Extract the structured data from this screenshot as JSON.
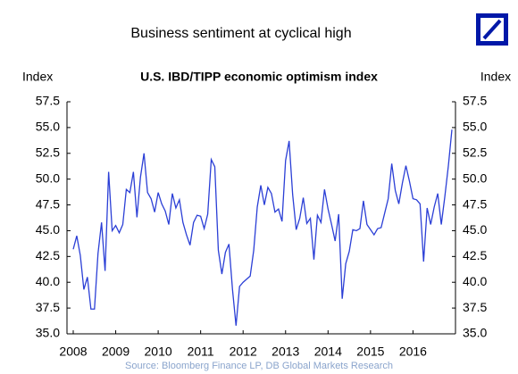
{
  "chart_data": {
    "type": "line",
    "title": "Business sentiment at cyclical high",
    "subtitle": "U.S. IBD/TIPP economic optimism index",
    "y_label": "Index",
    "y2_label": "Index",
    "source": "Source: Bloomberg Finance LP, DB Global Markets Research",
    "categories": [
      "2008",
      null,
      null,
      null,
      null,
      null,
      null,
      null,
      null,
      null,
      null,
      null,
      "2009",
      null,
      null,
      null,
      null,
      null,
      null,
      null,
      null,
      null,
      null,
      null,
      "2010",
      null,
      null,
      null,
      null,
      null,
      null,
      null,
      null,
      null,
      null,
      null,
      "2011",
      null,
      null,
      null,
      null,
      null,
      null,
      null,
      null,
      null,
      null,
      null,
      "2012",
      null,
      null,
      null,
      null,
      null,
      null,
      null,
      null,
      null,
      null,
      null,
      "2013",
      null,
      null,
      null,
      null,
      null,
      null,
      null,
      null,
      null,
      null,
      null,
      "2014",
      null,
      null,
      null,
      null,
      null,
      null,
      null,
      null,
      null,
      null,
      null,
      "2015",
      null,
      null,
      null,
      null,
      null,
      null,
      null,
      null,
      null,
      null,
      null,
      "2016",
      null,
      null,
      null,
      null,
      null,
      null,
      null,
      null,
      null,
      null,
      null
    ],
    "series": [
      {
        "name": "IBD/TIPP",
        "color": "#2b3fd6",
        "values": [
          43.2,
          44.5,
          42.6,
          39.3,
          40.5,
          37.4,
          37.4,
          42.8,
          45.8,
          41.1,
          50.7,
          45.0,
          45.5,
          44.8,
          45.6,
          49.0,
          48.7,
          50.7,
          46.3,
          50.2,
          52.5,
          48.7,
          48.1,
          46.8,
          48.7,
          47.6,
          46.9,
          45.6,
          48.6,
          47.2,
          48.0,
          45.8,
          44.6,
          43.6,
          45.8,
          46.5,
          46.4,
          45.2,
          46.6,
          51.9,
          51.2,
          43.1,
          40.8,
          42.9,
          43.7,
          39.3,
          35.8,
          39.6,
          40.0,
          40.3,
          40.6,
          43.1,
          47.3,
          49.4,
          47.5,
          49.2,
          48.6,
          46.8,
          47.1,
          45.9,
          51.8,
          53.7,
          48.5,
          45.1,
          46.2,
          48.2,
          45.7,
          46.2,
          42.2,
          46.5,
          45.8,
          49.0,
          47.1,
          45.6,
          44.0,
          46.6,
          38.4,
          41.8,
          43.0,
          45.1,
          45.0,
          45.2,
          47.9,
          45.6,
          45.1,
          44.6,
          45.2,
          45.3,
          46.7,
          48.1,
          51.5,
          48.9,
          47.6,
          49.6,
          51.3,
          49.8,
          48.1,
          48.0,
          47.6,
          42.0,
          47.2,
          45.6,
          47.3,
          48.6,
          45.6,
          48.3,
          51.3,
          54.8
        ]
      }
    ],
    "ylim": [
      35,
      57.5
    ],
    "yticks": [
      {
        "value": 35,
        "label": "35.0"
      },
      {
        "value": 37.5,
        "label": "37.5"
      },
      {
        "value": 40,
        "label": "40.0"
      },
      {
        "value": 42.5,
        "label": "42.5"
      },
      {
        "value": 45,
        "label": "45.0"
      },
      {
        "value": 47.5,
        "label": "47.5"
      },
      {
        "value": 50,
        "label": "50.0"
      },
      {
        "value": 52.5,
        "label": "52.5"
      },
      {
        "value": 55,
        "label": "55.0"
      },
      {
        "value": 57.5,
        "label": "57.5"
      }
    ],
    "grid": false
  }
}
